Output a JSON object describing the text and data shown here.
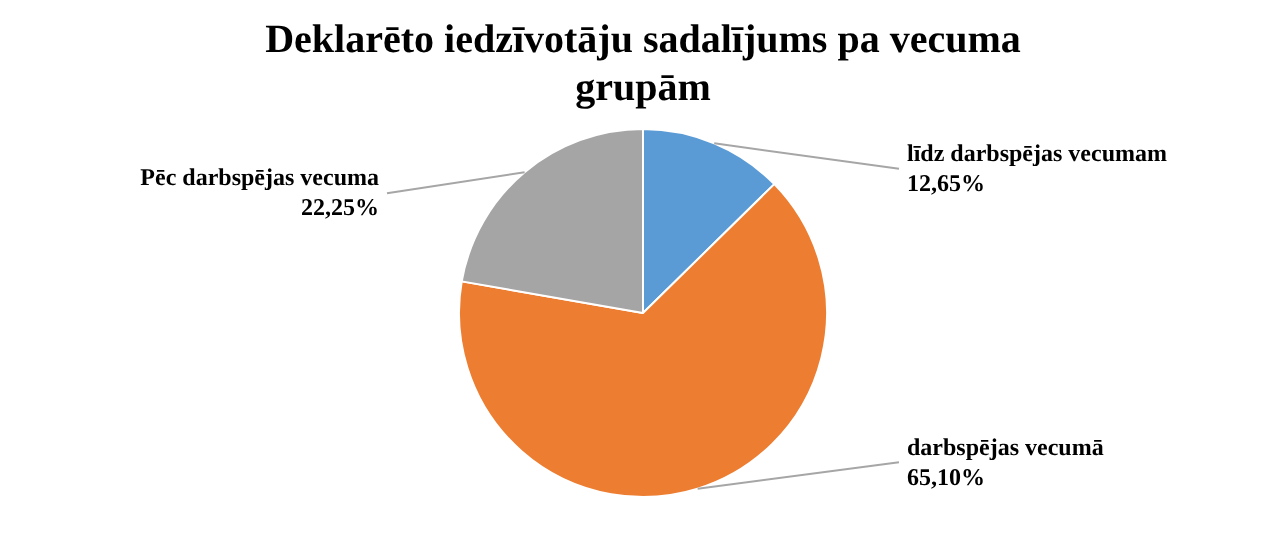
{
  "chart_data": {
    "type": "pie",
    "title": "Deklarēto iedzīvotāju sadalījums pa vecuma grupām",
    "categories": [
      "līdz darbspējas vecumam",
      "darbspējas vecumā",
      "Pēc darbspējas vecuma"
    ],
    "values": [
      12.65,
      65.1,
      22.25
    ],
    "colors": [
      "#5b9bd5",
      "#ed7d31",
      "#a5a5a5"
    ],
    "value_labels": [
      "12,65%",
      "65,10%",
      "22,25%"
    ],
    "legend": false
  }
}
